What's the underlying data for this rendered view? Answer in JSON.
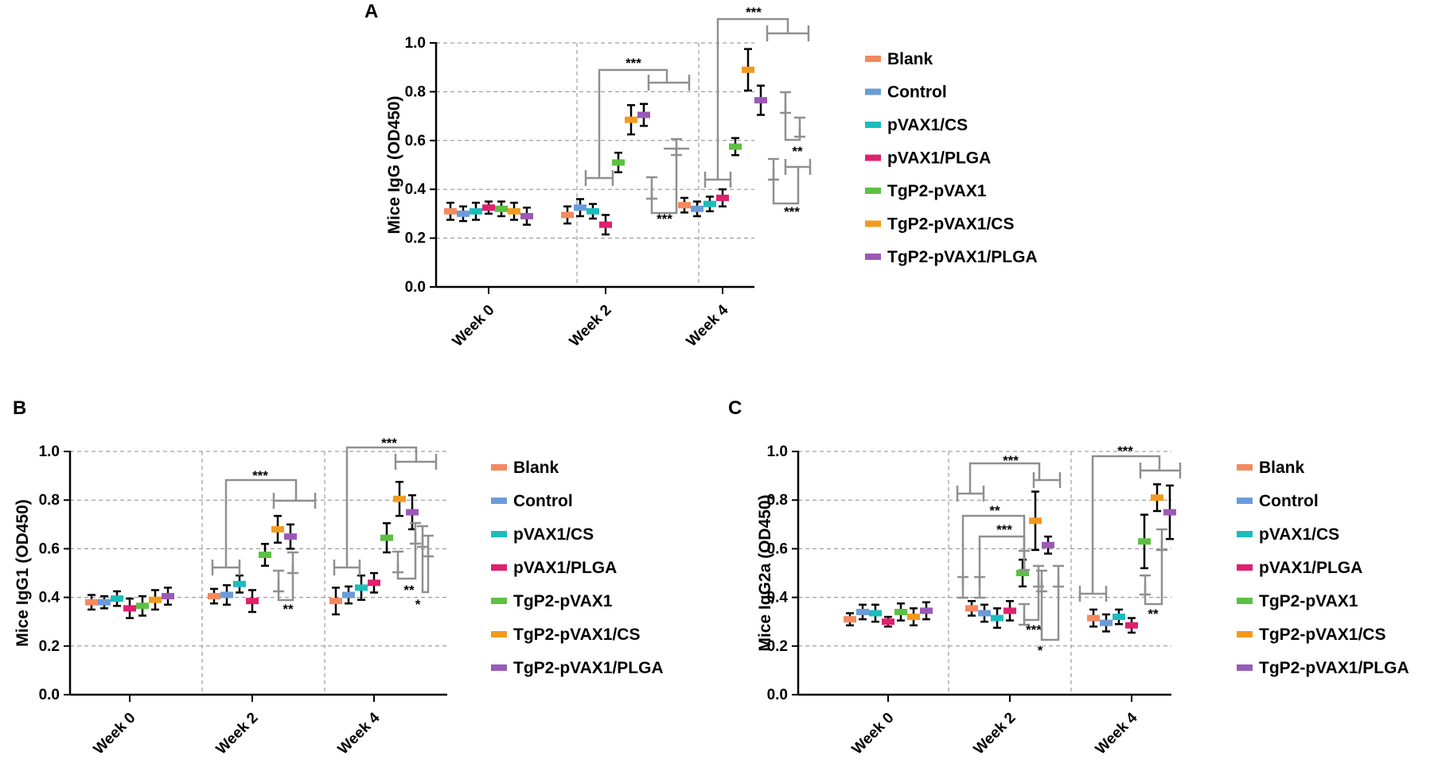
{
  "chart_data": [
    {
      "panel": "A",
      "type": "scatter",
      "ylabel": "Mice IgG (OD450)",
      "ylim": [
        0,
        1.0
      ],
      "yticks": [
        "0.0",
        "0.2",
        "0.4",
        "0.6",
        "0.8",
        "1.0"
      ],
      "categories": [
        "Week 0",
        "Week 2",
        "Week 4"
      ],
      "series": [
        {
          "name": "Blank",
          "values": [
            0.31,
            0.295,
            0.335
          ],
          "errors": [
            0.035,
            0.035,
            0.03
          ]
        },
        {
          "name": "Control",
          "values": [
            0.3,
            0.325,
            0.32
          ],
          "errors": [
            0.03,
            0.035,
            0.03
          ]
        },
        {
          "name": "pVAX1/CS",
          "values": [
            0.31,
            0.31,
            0.34
          ],
          "errors": [
            0.035,
            0.03,
            0.03
          ]
        },
        {
          "name": "pVAX1/PLGA",
          "values": [
            0.325,
            0.255,
            0.365
          ],
          "errors": [
            0.025,
            0.04,
            0.035
          ]
        },
        {
          "name": "TgP2-pVAX1",
          "values": [
            0.32,
            0.51,
            0.575
          ],
          "errors": [
            0.03,
            0.04,
            0.035
          ]
        },
        {
          "name": "TgP2-pVAX1/CS",
          "values": [
            0.31,
            0.685,
            0.89
          ],
          "errors": [
            0.035,
            0.06,
            0.085
          ]
        },
        {
          "name": "TgP2-pVAX1/PLGA",
          "values": [
            0.29,
            0.705,
            0.765
          ],
          "errors": [
            0.035,
            0.045,
            0.06
          ]
        }
      ],
      "annotations": [
        {
          "week": 1,
          "from": 0.0,
          "to": [
            5,
            6
          ],
          "label": "***",
          "pos": "top"
        },
        {
          "week": 1,
          "from": 4,
          "to": [
            5,
            6
          ],
          "label": "***",
          "pos": "bottom"
        },
        {
          "week": 2,
          "from": 0.0,
          "to": [
            5,
            6
          ],
          "label": "***",
          "pos": "top"
        },
        {
          "week": 2,
          "from": 4,
          "to": [
            5,
            6
          ],
          "label": "***",
          "pos": "bottom"
        },
        {
          "week": 2,
          "from": 5,
          "to": [
            6
          ],
          "label": "**",
          "pos": "bottom"
        }
      ]
    },
    {
      "panel": "B",
      "type": "scatter",
      "ylabel": "Mice IgG1 (OD450)",
      "ylim": [
        0,
        1.0
      ],
      "yticks": [
        "0.0",
        "0.2",
        "0.4",
        "0.6",
        "0.8",
        "1.0"
      ],
      "categories": [
        "Week 0",
        "Week 2",
        "Week 4"
      ],
      "series": [
        {
          "name": "Blank",
          "values": [
            0.38,
            0.405,
            0.385
          ],
          "errors": [
            0.03,
            0.03,
            0.055
          ]
        },
        {
          "name": "Control",
          "values": [
            0.38,
            0.41,
            0.41
          ],
          "errors": [
            0.025,
            0.04,
            0.035
          ]
        },
        {
          "name": "pVAX1/CS",
          "values": [
            0.395,
            0.455,
            0.44
          ],
          "errors": [
            0.03,
            0.035,
            0.05
          ]
        },
        {
          "name": "pVAX1/PLGA",
          "values": [
            0.355,
            0.385,
            0.46
          ],
          "errors": [
            0.04,
            0.045,
            0.04
          ]
        },
        {
          "name": "TgP2-pVAX1",
          "values": [
            0.365,
            0.575,
            0.645
          ],
          "errors": [
            0.04,
            0.045,
            0.06
          ]
        },
        {
          "name": "TgP2-pVAX1/CS",
          "values": [
            0.39,
            0.68,
            0.805
          ],
          "errors": [
            0.04,
            0.055,
            0.07
          ]
        },
        {
          "name": "TgP2-pVAX1/PLGA",
          "values": [
            0.405,
            0.65,
            0.75
          ],
          "errors": [
            0.035,
            0.05,
            0.07
          ]
        }
      ],
      "annotations": [
        {
          "week": 1,
          "label": "***",
          "pos": "top"
        },
        {
          "week": 1,
          "label": "**",
          "pos": "bottom"
        },
        {
          "week": 2,
          "label": "***",
          "pos": "top"
        },
        {
          "week": 2,
          "label": "**",
          "pos": "bottom"
        },
        {
          "week": 2,
          "label": "*",
          "pos": "bottom"
        }
      ]
    },
    {
      "panel": "C",
      "type": "scatter",
      "ylabel": "Mice IgG2a (OD450)",
      "ylim": [
        0,
        1.0
      ],
      "yticks": [
        "0.0",
        "0.2",
        "0.4",
        "0.6",
        "0.8",
        "1.0"
      ],
      "categories": [
        "Week 0",
        "Week 2",
        "Week 4"
      ],
      "series": [
        {
          "name": "Blank",
          "values": [
            0.31,
            0.355,
            0.315
          ],
          "errors": [
            0.025,
            0.03,
            0.035
          ]
        },
        {
          "name": "Control",
          "values": [
            0.34,
            0.335,
            0.295
          ],
          "errors": [
            0.03,
            0.035,
            0.035
          ]
        },
        {
          "name": "pVAX1/CS",
          "values": [
            0.335,
            0.315,
            0.32
          ],
          "errors": [
            0.035,
            0.04,
            0.03
          ]
        },
        {
          "name": "pVAX1/PLGA",
          "values": [
            0.3,
            0.345,
            0.285
          ],
          "errors": [
            0.02,
            0.04,
            0.03
          ]
        },
        {
          "name": "TgP2-pVAX1",
          "values": [
            0.34,
            0.5,
            0.63
          ],
          "errors": [
            0.035,
            0.055,
            0.11
          ]
        },
        {
          "name": "TgP2-pVAX1/CS",
          "values": [
            0.32,
            0.715,
            0.81
          ],
          "errors": [
            0.035,
            0.12,
            0.055
          ]
        },
        {
          "name": "TgP2-pVAX1/PLGA",
          "values": [
            0.345,
            0.615,
            0.75
          ],
          "errors": [
            0.035,
            0.035,
            0.11
          ]
        }
      ],
      "annotations": [
        {
          "week": 1,
          "label": "***",
          "pos": "top"
        },
        {
          "week": 1,
          "label": "**",
          "pos": "top"
        },
        {
          "week": 1,
          "label": "***",
          "pos": "top"
        },
        {
          "week": 1,
          "label": "***",
          "pos": "bottom"
        },
        {
          "week": 1,
          "label": "*",
          "pos": "bottom"
        },
        {
          "week": 2,
          "label": "***",
          "pos": "top"
        },
        {
          "week": 2,
          "label": "**",
          "pos": "bottom"
        }
      ]
    }
  ],
  "colors": {
    "Blank": "#f4895f",
    "Control": "#6b9bd8",
    "pVAX1/CS": "#1cbcbc",
    "pVAX1/PLGA": "#e0206e",
    "TgP2-pVAX1": "#5cc043",
    "TgP2-pVAX1/CS": "#f39a1e",
    "TgP2-pVAX1/PLGA": "#9b59b6",
    "bracket": "#8f8f8f",
    "grid": "#8a8a8a"
  }
}
